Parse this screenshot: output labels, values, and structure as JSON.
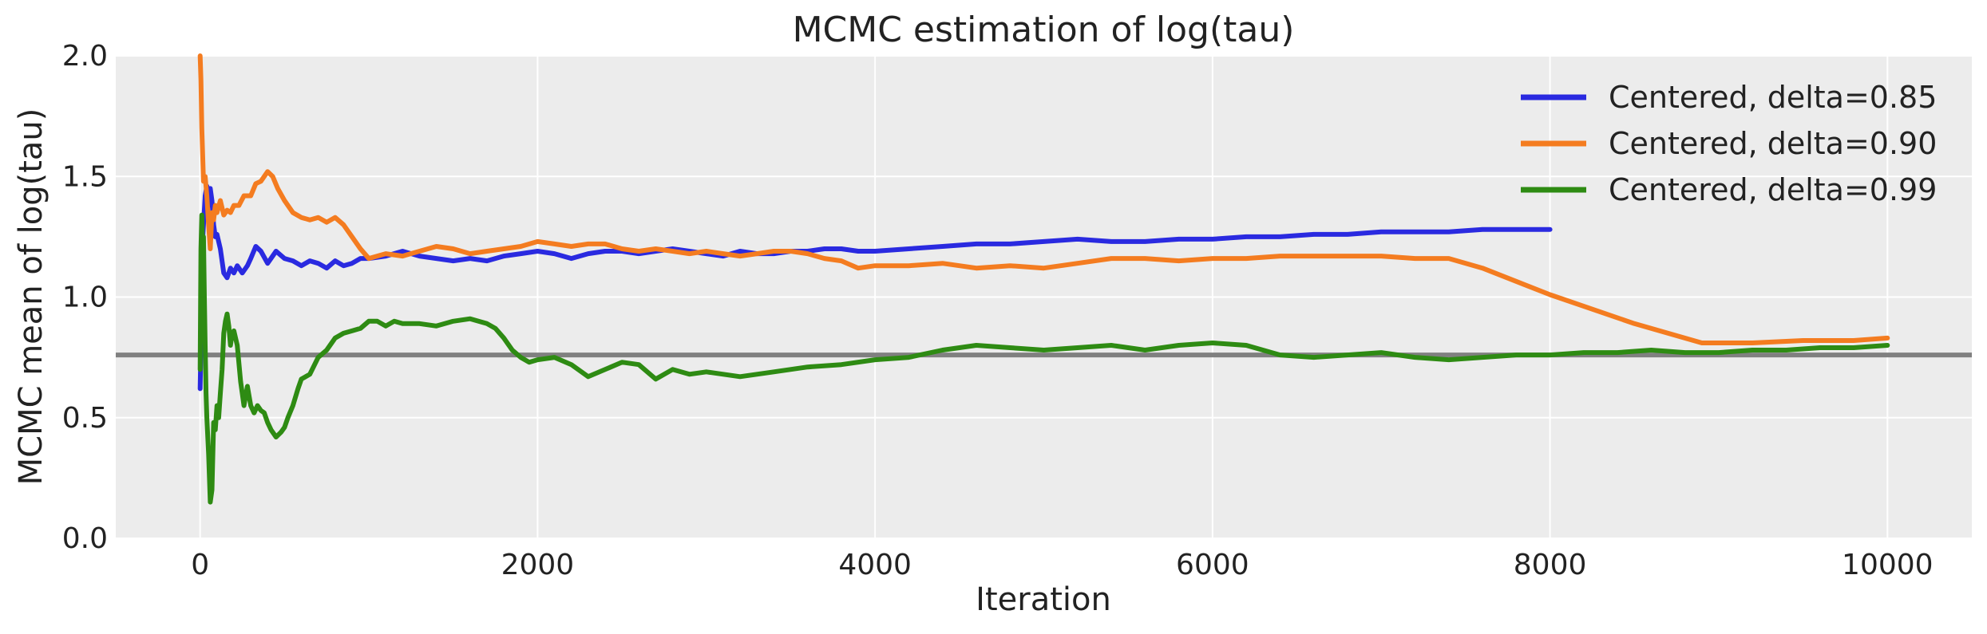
{
  "chart_data": {
    "type": "line",
    "title": "MCMC estimation of log(tau)",
    "xlabel": "Iteration",
    "ylabel": "MCMC mean of log(tau)",
    "xlim": [
      -500,
      10500
    ],
    "ylim": [
      0,
      2.0
    ],
    "xticks": [
      0,
      2000,
      4000,
      6000,
      8000,
      10000
    ],
    "yticks": [
      0.0,
      0.5,
      1.0,
      1.5,
      2.0
    ],
    "xtick_labels": [
      "0",
      "2000",
      "4000",
      "6000",
      "8000",
      "10000"
    ],
    "ytick_labels": [
      "0.0",
      "0.5",
      "1.0",
      "1.5",
      "2.0"
    ],
    "grid": true,
    "legend_position": "top-right",
    "reference_line": {
      "y": 0.76,
      "color": "#808080"
    },
    "series": [
      {
        "name": "Centered, delta=0.85",
        "color": "#2a2ae0",
        "x": [
          0,
          5,
          10,
          20,
          30,
          40,
          50,
          60,
          70,
          80,
          90,
          100,
          120,
          140,
          160,
          180,
          200,
          220,
          250,
          280,
          300,
          330,
          360,
          400,
          450,
          500,
          550,
          600,
          650,
          700,
          750,
          800,
          850,
          900,
          950,
          1000,
          1100,
          1200,
          1300,
          1400,
          1500,
          1600,
          1700,
          1800,
          1900,
          2000,
          2100,
          2200,
          2300,
          2400,
          2500,
          2600,
          2700,
          2800,
          2900,
          3000,
          3100,
          3200,
          3300,
          3400,
          3500,
          3600,
          3700,
          3800,
          3900,
          4000,
          4200,
          4400,
          4600,
          4800,
          5000,
          5200,
          5400,
          5600,
          5800,
          6000,
          6200,
          6400,
          6600,
          6800,
          7000,
          7200,
          7400,
          7600,
          7800,
          8000
        ],
        "y": [
          0.62,
          0.8,
          1.18,
          1.3,
          1.42,
          1.46,
          1.38,
          1.45,
          1.4,
          1.3,
          1.25,
          1.26,
          1.2,
          1.1,
          1.08,
          1.12,
          1.1,
          1.13,
          1.1,
          1.13,
          1.16,
          1.21,
          1.19,
          1.14,
          1.19,
          1.16,
          1.15,
          1.13,
          1.15,
          1.14,
          1.12,
          1.15,
          1.13,
          1.14,
          1.16,
          1.16,
          1.17,
          1.19,
          1.17,
          1.16,
          1.15,
          1.16,
          1.15,
          1.17,
          1.18,
          1.19,
          1.18,
          1.16,
          1.18,
          1.19,
          1.19,
          1.18,
          1.19,
          1.2,
          1.19,
          1.18,
          1.17,
          1.19,
          1.18,
          1.18,
          1.19,
          1.19,
          1.2,
          1.2,
          1.19,
          1.19,
          1.2,
          1.21,
          1.22,
          1.22,
          1.23,
          1.24,
          1.23,
          1.23,
          1.24,
          1.24,
          1.25,
          1.25,
          1.26,
          1.26,
          1.27,
          1.27,
          1.27,
          1.28,
          1.28,
          1.28
        ]
      },
      {
        "name": "Centered, delta=0.90",
        "color": "#f47c20",
        "x": [
          0,
          5,
          10,
          20,
          30,
          40,
          50,
          60,
          70,
          80,
          90,
          100,
          120,
          140,
          160,
          180,
          200,
          230,
          260,
          300,
          330,
          360,
          400,
          430,
          460,
          500,
          550,
          600,
          650,
          700,
          750,
          800,
          850,
          900,
          950,
          1000,
          1100,
          1200,
          1300,
          1400,
          1500,
          1600,
          1700,
          1800,
          1900,
          2000,
          2100,
          2200,
          2300,
          2400,
          2500,
          2600,
          2700,
          2800,
          2900,
          3000,
          3100,
          3200,
          3300,
          3400,
          3500,
          3600,
          3700,
          3800,
          3900,
          4000,
          4200,
          4400,
          4600,
          4800,
          5000,
          5200,
          5400,
          5600,
          5800,
          6000,
          6200,
          6400,
          6600,
          6800,
          7000,
          7200,
          7400,
          7600,
          8000,
          8500,
          8900,
          9200,
          9500,
          9800,
          10000
        ],
        "y": [
          2.0,
          1.9,
          1.7,
          1.48,
          1.5,
          1.42,
          1.3,
          1.2,
          1.35,
          1.32,
          1.38,
          1.35,
          1.4,
          1.34,
          1.36,
          1.35,
          1.38,
          1.38,
          1.42,
          1.42,
          1.47,
          1.48,
          1.52,
          1.5,
          1.45,
          1.4,
          1.35,
          1.33,
          1.32,
          1.33,
          1.31,
          1.33,
          1.3,
          1.25,
          1.2,
          1.16,
          1.18,
          1.17,
          1.19,
          1.21,
          1.2,
          1.18,
          1.19,
          1.2,
          1.21,
          1.23,
          1.22,
          1.21,
          1.22,
          1.22,
          1.2,
          1.19,
          1.2,
          1.19,
          1.18,
          1.19,
          1.18,
          1.17,
          1.18,
          1.19,
          1.19,
          1.18,
          1.16,
          1.15,
          1.12,
          1.13,
          1.13,
          1.14,
          1.12,
          1.13,
          1.12,
          1.14,
          1.16,
          1.16,
          1.15,
          1.16,
          1.16,
          1.17,
          1.17,
          1.17,
          1.17,
          1.16,
          1.16,
          1.12,
          1.01,
          0.89,
          0.81,
          0.81,
          0.82,
          0.82,
          0.83
        ]
      },
      {
        "name": "Centered, delta=0.99",
        "color": "#2e8b13",
        "x": [
          0,
          5,
          10,
          15,
          20,
          25,
          30,
          35,
          40,
          50,
          60,
          70,
          80,
          90,
          100,
          110,
          120,
          130,
          140,
          150,
          160,
          170,
          180,
          190,
          200,
          220,
          240,
          260,
          280,
          300,
          320,
          340,
          360,
          380,
          400,
          420,
          450,
          480,
          500,
          520,
          550,
          580,
          600,
          650,
          700,
          750,
          800,
          850,
          900,
          950,
          1000,
          1050,
          1100,
          1150,
          1200,
          1300,
          1400,
          1500,
          1600,
          1650,
          1700,
          1750,
          1800,
          1850,
          1900,
          1950,
          2000,
          2100,
          2200,
          2300,
          2400,
          2500,
          2600,
          2700,
          2800,
          2900,
          3000,
          3200,
          3400,
          3600,
          3800,
          4000,
          4200,
          4400,
          4600,
          4800,
          5000,
          5200,
          5400,
          5600,
          5800,
          6000,
          6200,
          6400,
          6600,
          6800,
          7000,
          7200,
          7400,
          7600,
          7800,
          8000,
          8200,
          8400,
          8600,
          8800,
          9000,
          9200,
          9400,
          9600,
          9800,
          10000
        ],
        "y": [
          0.7,
          1.2,
          1.34,
          1.2,
          1.25,
          1.0,
          0.8,
          0.6,
          0.5,
          0.35,
          0.15,
          0.2,
          0.48,
          0.45,
          0.55,
          0.5,
          0.6,
          0.7,
          0.85,
          0.9,
          0.93,
          0.88,
          0.8,
          0.85,
          0.86,
          0.8,
          0.65,
          0.55,
          0.63,
          0.55,
          0.52,
          0.55,
          0.53,
          0.52,
          0.48,
          0.45,
          0.42,
          0.44,
          0.46,
          0.5,
          0.55,
          0.62,
          0.66,
          0.68,
          0.75,
          0.78,
          0.83,
          0.85,
          0.86,
          0.87,
          0.9,
          0.9,
          0.88,
          0.9,
          0.89,
          0.89,
          0.88,
          0.9,
          0.91,
          0.9,
          0.89,
          0.87,
          0.83,
          0.78,
          0.75,
          0.73,
          0.74,
          0.75,
          0.72,
          0.67,
          0.7,
          0.73,
          0.72,
          0.66,
          0.7,
          0.68,
          0.69,
          0.67,
          0.69,
          0.71,
          0.72,
          0.74,
          0.75,
          0.78,
          0.8,
          0.79,
          0.78,
          0.79,
          0.8,
          0.78,
          0.8,
          0.81,
          0.8,
          0.76,
          0.75,
          0.76,
          0.77,
          0.75,
          0.74,
          0.75,
          0.76,
          0.76,
          0.77,
          0.77,
          0.78,
          0.77,
          0.77,
          0.78,
          0.78,
          0.79,
          0.79,
          0.8
        ]
      }
    ]
  }
}
